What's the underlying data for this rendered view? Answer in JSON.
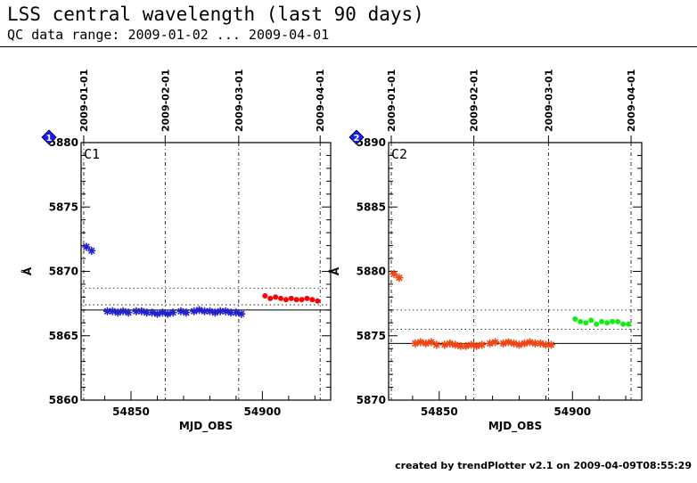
{
  "header": {
    "title": "LSS central wavelength (last 90 days)",
    "subtitle": "QC data range: 2009-01-02 ... 2009-04-01"
  },
  "footer": {
    "text": "created by trendPlotter v2.1 on 2009-04-09T08:55:29"
  },
  "chart_data": [
    {
      "type": "scatter",
      "panel_label": "C1",
      "badge": "1",
      "xlabel": "MJD_OBS",
      "ylabel": "Å",
      "xlim": [
        54831,
        54926
      ],
      "ylim": [
        5860,
        5880
      ],
      "x_ticks": [
        54850,
        54900
      ],
      "y_ticks": [
        5860,
        5865,
        5870,
        5875,
        5880
      ],
      "date_markers": [
        {
          "mjd": 54832,
          "label": "2009-01-01"
        },
        {
          "mjd": 54863,
          "label": "2009-02-01"
        },
        {
          "mjd": 54891,
          "label": "2009-03-01"
        },
        {
          "mjd": 54922,
          "label": "2009-04-01"
        }
      ],
      "reference_line": 5867.0,
      "tolerance_band": [
        5867.4,
        5868.7
      ],
      "colors": {
        "blue": "#2222cc",
        "red": "#ff0000"
      },
      "series": [
        {
          "marker": "star",
          "color": "blue",
          "x": [
            54833,
            54835
          ],
          "y": [
            5871.9,
            5871.6
          ]
        },
        {
          "marker": "star",
          "color": "blue",
          "x": [
            54841,
            54843,
            54845,
            54847,
            54849,
            54852,
            54854,
            54856,
            54858,
            54860,
            54862,
            54864,
            54866,
            54869,
            54871,
            54874,
            54876,
            54878,
            54880,
            54882,
            54884,
            54886,
            54888,
            54890,
            54892
          ],
          "y": [
            5866.9,
            5866.9,
            5866.8,
            5866.9,
            5866.8,
            5866.9,
            5866.9,
            5866.8,
            5866.8,
            5866.7,
            5866.8,
            5866.7,
            5866.8,
            5866.9,
            5866.8,
            5866.9,
            5867.0,
            5866.9,
            5866.9,
            5866.8,
            5866.9,
            5866.9,
            5866.8,
            5866.8,
            5866.7
          ]
        },
        {
          "marker": "dot",
          "color": "red",
          "x": [
            54901,
            54903,
            54905,
            54907,
            54909,
            54911,
            54913,
            54915,
            54917,
            54919,
            54921
          ],
          "y": [
            5868.1,
            5867.9,
            5868.0,
            5867.9,
            5867.8,
            5867.9,
            5867.8,
            5867.8,
            5867.9,
            5867.8,
            5867.7
          ]
        }
      ]
    },
    {
      "type": "scatter",
      "panel_label": "C2",
      "badge": "2",
      "xlabel": "MJD_OBS",
      "ylabel": "Å",
      "xlim": [
        54831,
        54926
      ],
      "ylim": [
        5870,
        5890
      ],
      "x_ticks": [
        54850,
        54900
      ],
      "y_ticks": [
        5870,
        5875,
        5880,
        5885,
        5890
      ],
      "date_markers": [
        {
          "mjd": 54832,
          "label": "2009-01-01"
        },
        {
          "mjd": 54863,
          "label": "2009-02-01"
        },
        {
          "mjd": 54891,
          "label": "2009-03-01"
        },
        {
          "mjd": 54922,
          "label": "2009-04-01"
        }
      ],
      "reference_line": 5874.4,
      "tolerance_band": [
        5875.5,
        5877.0
      ],
      "colors": {
        "orange": "#ee4411",
        "green": "#11ee11"
      },
      "series": [
        {
          "marker": "star",
          "color": "orange",
          "x": [
            54833,
            54835
          ],
          "y": [
            5879.8,
            5879.5
          ]
        },
        {
          "marker": "star",
          "color": "orange",
          "x": [
            54841,
            54843,
            54845,
            54847,
            54849,
            54852,
            54854,
            54856,
            54858,
            54860,
            54862,
            54864,
            54866,
            54869,
            54871,
            54874,
            54876,
            54878,
            54880,
            54882,
            54884,
            54886,
            54888,
            54890,
            54892
          ],
          "y": [
            5874.4,
            5874.5,
            5874.4,
            5874.5,
            5874.3,
            5874.3,
            5874.4,
            5874.3,
            5874.2,
            5874.2,
            5874.3,
            5874.2,
            5874.3,
            5874.4,
            5874.5,
            5874.4,
            5874.5,
            5874.4,
            5874.3,
            5874.4,
            5874.5,
            5874.4,
            5874.4,
            5874.3,
            5874.3
          ]
        },
        {
          "marker": "dot",
          "color": "green",
          "x": [
            54901,
            54903,
            54905,
            54907,
            54909,
            54911,
            54913,
            54915,
            54917,
            54919,
            54921
          ],
          "y": [
            5876.3,
            5876.1,
            5876.0,
            5876.2,
            5875.9,
            5876.1,
            5876.0,
            5876.1,
            5876.1,
            5875.9,
            5875.9
          ]
        }
      ]
    }
  ]
}
